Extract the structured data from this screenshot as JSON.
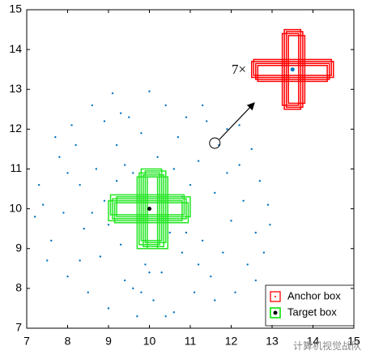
{
  "chart_data": {
    "type": "scatter",
    "x": [
      7.4,
      7.6,
      7.8,
      8.0,
      8.1,
      8.3,
      8.4,
      8.5,
      8.6,
      8.7,
      8.8,
      8.9,
      9.0,
      9.1,
      9.2,
      9.3,
      9.4,
      9.5,
      9.6,
      9.7,
      9.8,
      9.9,
      10.0,
      10.1,
      10.2,
      10.3,
      10.4,
      10.5,
      10.6,
      10.7,
      10.8,
      10.9,
      11.0,
      11.1,
      11.2,
      11.3,
      11.4,
      11.5,
      11.6,
      11.7,
      11.8,
      11.9,
      12.0,
      12.1,
      12.2,
      12.3,
      12.4,
      12.5,
      12.6,
      12.7,
      12.8,
      12.9,
      12.95,
      7.2,
      7.3,
      7.5,
      7.7,
      7.9,
      8.2,
      8.3,
      8.6,
      8.9,
      9.2,
      9.4,
      9.6,
      9.8,
      10.4,
      10.6,
      10.9,
      11.3,
      11.6,
      12.2,
      12.6,
      11.9,
      8.0,
      9.0,
      10.0,
      11.2,
      10.8,
      9.3
    ],
    "y": [
      10.1,
      9.2,
      11.3,
      8.3,
      12.1,
      10.6,
      9.5,
      7.9,
      12.6,
      11.0,
      8.8,
      10.2,
      7.5,
      12.9,
      11.6,
      9.1,
      8.2,
      12.3,
      10.9,
      7.3,
      11.9,
      8.6,
      12.95,
      7.7,
      11.3,
      8.4,
      12.6,
      9.4,
      7.4,
      11.8,
      8.9,
      12.3,
      10.6,
      7.9,
      11.2,
      9.2,
      12.2,
      8.3,
      10.4,
      11.6,
      8.9,
      12.0,
      9.7,
      7.9,
      11.1,
      10.2,
      8.6,
      11.5,
      9.4,
      10.7,
      8.9,
      10.1,
      9.6,
      9.8,
      10.6,
      8.7,
      11.8,
      9.9,
      11.6,
      8.7,
      9.9,
      12.2,
      10.7,
      11.1,
      8.0,
      7.9,
      7.3,
      11.0,
      9.4,
      12.6,
      7.7,
      12.1,
      8.2,
      10.9,
      10.9,
      9.6,
      8.4,
      8.6,
      10.3,
      12.4
    ],
    "color": "#0072bd",
    "xlim": [
      7,
      15
    ],
    "ylim": [
      7,
      15
    ],
    "xticks": [
      7,
      8,
      9,
      10,
      11,
      12,
      13,
      14,
      15
    ],
    "yticks": [
      7,
      8,
      9,
      10,
      11,
      12,
      13,
      14,
      15
    ],
    "target_boxes": [
      [
        9.7,
        9.0,
        10.2,
        10.8
      ],
      [
        9.75,
        9.1,
        10.25,
        10.9
      ],
      [
        9.8,
        9.2,
        10.3,
        11.0
      ],
      [
        9.85,
        9.05,
        10.35,
        10.85
      ],
      [
        9.9,
        9.15,
        10.4,
        10.95
      ],
      [
        9.95,
        9.0,
        10.45,
        10.8
      ],
      [
        9.0,
        9.7,
        10.8,
        10.2
      ],
      [
        9.1,
        9.75,
        10.9,
        10.25
      ],
      [
        9.2,
        9.8,
        11.0,
        10.3
      ],
      [
        9.05,
        9.85,
        10.85,
        10.35
      ],
      [
        9.15,
        9.65,
        10.95,
        10.15
      ]
    ],
    "target_color": "#22e622",
    "target_center": [
      10,
      10
    ],
    "anchor_boxes": [
      [
        13.3,
        12.5,
        13.7,
        14.5
      ],
      [
        13.25,
        12.6,
        13.65,
        14.4
      ],
      [
        13.35,
        12.55,
        13.75,
        14.45
      ],
      [
        13.4,
        12.65,
        13.8,
        14.35
      ],
      [
        12.5,
        13.3,
        14.5,
        13.7
      ],
      [
        12.6,
        13.25,
        14.4,
        13.65
      ],
      [
        12.55,
        13.35,
        14.45,
        13.75
      ],
      [
        12.65,
        13.2,
        14.35,
        13.6
      ]
    ],
    "anchor_color": "#ff0000",
    "anchor_center": [
      13.5,
      13.5
    ],
    "highlight_point": [
      11.6,
      11.65
    ],
    "annotation": "7×",
    "legend": [
      "Anchor box",
      "Target box"
    ],
    "watermark": "计算机视觉战队"
  }
}
